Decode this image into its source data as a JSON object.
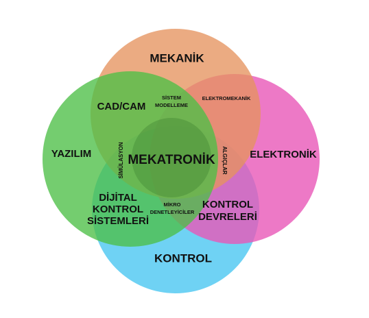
{
  "diagram": {
    "sets": [
      {
        "key": "mekanik",
        "label": "MEKANİK",
        "color": "#E5935F"
      },
      {
        "key": "elektronik",
        "label": "ELEKTRONİK",
        "color": "#E857B8"
      },
      {
        "key": "kontrol",
        "label": "KONTROL",
        "color": "#4FC8F2"
      },
      {
        "key": "yazilim",
        "label": "YAZILIM",
        "color": "#4DBF47"
      }
    ],
    "intersections": {
      "mek_yaz": [
        "CAD/CAM"
      ],
      "mek_elk": [
        "ELEKTROMEKANİK"
      ],
      "mek_center": [
        "SİSTEM",
        "MODELLEME"
      ],
      "yaz_center": "SİMÜLASYON",
      "elk_center": "ALGIÇLAR",
      "yaz_kon": [
        "DİJİTAL",
        "KONTROL",
        "SİSTEMLERİ"
      ],
      "kon_center": [
        "MİKRO",
        "DENETLEYİCİLER"
      ],
      "elk_kon": [
        "KONTROL",
        "DEVRELERİ"
      ],
      "center": "MEKATRONİK"
    }
  }
}
